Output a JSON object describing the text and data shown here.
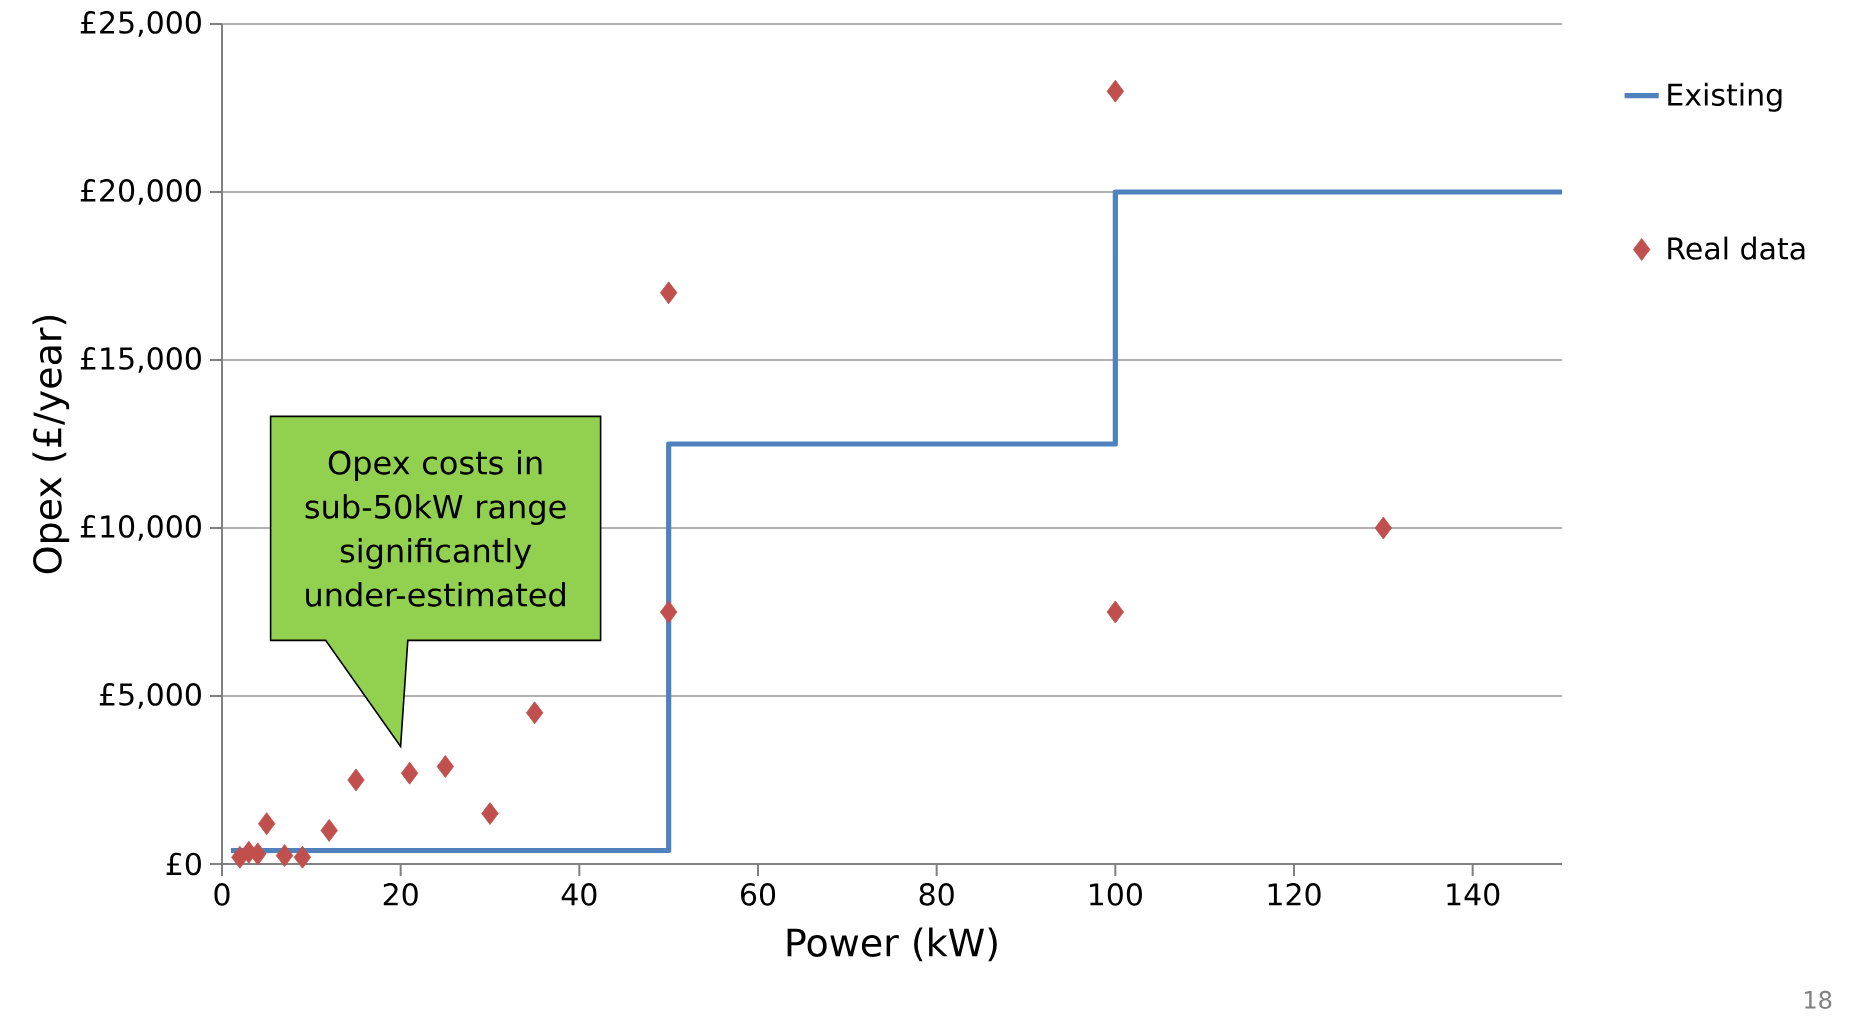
{
  "chart_data": {
    "type": "scatter",
    "xlabel": "Power (kW)",
    "ylabel": "Opex (£/year)",
    "xlim": [
      0,
      150
    ],
    "xticks": [
      0,
      20,
      40,
      60,
      80,
      100,
      120,
      140
    ],
    "ylim": [
      0,
      25000
    ],
    "yticks": [
      {
        "value": 0,
        "label": "£0"
      },
      {
        "value": 5000,
        "label": "£5,000"
      },
      {
        "value": 10000,
        "label": "£10,000"
      },
      {
        "value": 15000,
        "label": "£15,000"
      },
      {
        "value": 20000,
        "label": "£20,000"
      },
      {
        "value": 25000,
        "label": "£25,000"
      }
    ],
    "grid": "y",
    "legend": "right",
    "series": [
      {
        "name": "Existing",
        "type": "step",
        "color": "#4f81bd",
        "marker": "none",
        "x": [
          1,
          50,
          100,
          150
        ],
        "values": [
          400,
          12500,
          20000,
          20000
        ]
      },
      {
        "name": "Real data",
        "type": "scatter",
        "color": "#c0504d",
        "marker": "diamond",
        "x": [
          2,
          3,
          4,
          5,
          7,
          9,
          12,
          15,
          21,
          25,
          30,
          35,
          50,
          50,
          100,
          100,
          130
        ],
        "values": [
          200,
          350,
          300,
          1200,
          250,
          200,
          1000,
          2500,
          2700,
          2900,
          1500,
          4500,
          17000,
          7500,
          23000,
          7500,
          10000
        ]
      }
    ],
    "annotations": [
      "Opex costs in sub-50kW range significantly under-estimated",
      "18"
    ]
  }
}
